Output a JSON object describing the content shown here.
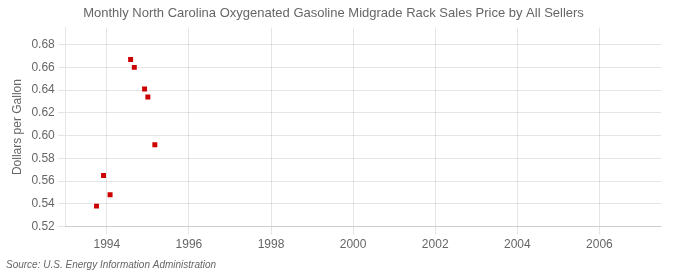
{
  "chart_data": {
    "type": "scatter",
    "title": "Monthly North Carolina Oxygenated Gasoline Midgrade Rack Sales Price by All Sellers",
    "ylabel": "Dollars per Gallon",
    "annotations": [
      "Source: U.S. Energy Information Administration"
    ],
    "x": [
      1993.75,
      1993.92,
      1994.08,
      1994.58,
      1994.67,
      1994.92,
      1995.0,
      1995.17
    ],
    "values": [
      0.538,
      0.565,
      0.548,
      0.667,
      0.66,
      0.641,
      0.634,
      0.592
    ],
    "color": "#cc0000",
    "marker": "square",
    "xlim": [
      1993.0,
      2007.5
    ],
    "ylim": [
      0.52,
      0.695
    ],
    "xticks": [
      1994,
      1996,
      1998,
      2000,
      2002,
      2004,
      2006
    ],
    "yticks": [
      0.52,
      0.54,
      0.56,
      0.58,
      {
        "value": 0.6,
        "label": "0.60"
      },
      0.62,
      0.64,
      0.66,
      0.68
    ],
    "grid": true
  }
}
